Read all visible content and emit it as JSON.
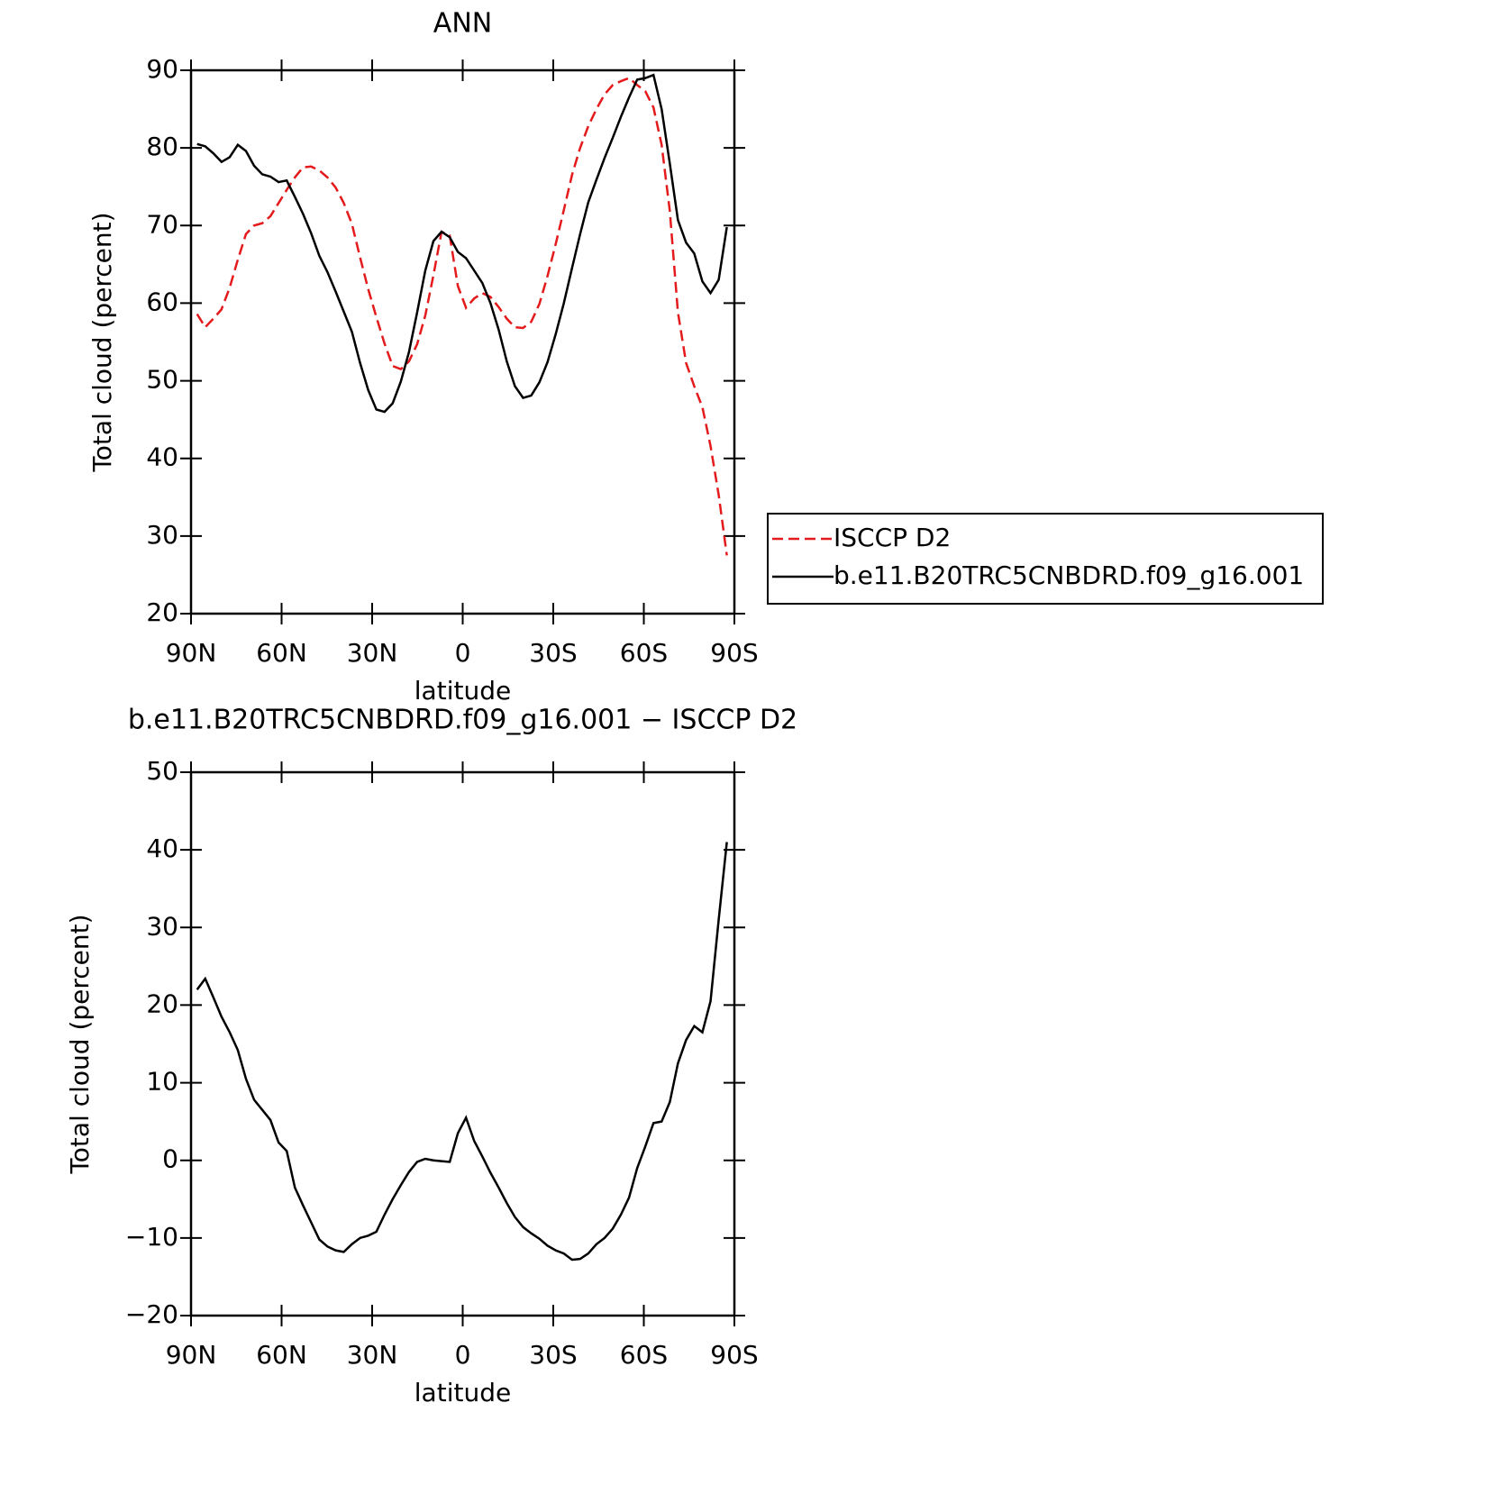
{
  "chart_data": [
    {
      "type": "line",
      "title": "ANN",
      "xlabel": "latitude",
      "ylabel": "Total cloud (percent)",
      "x": [
        88,
        85.3,
        82.6,
        79.9,
        77.2,
        74.5,
        71.8,
        69.1,
        66.4,
        63.7,
        61,
        58.3,
        55.6,
        52.9,
        50.2,
        47.5,
        44.8,
        42.1,
        39.4,
        36.7,
        34,
        31.3,
        28.6,
        25.9,
        23.2,
        20.5,
        17.8,
        15.1,
        12.4,
        9.7,
        7,
        4.3,
        1.6,
        -1.1,
        -3.8,
        -6.5,
        -9.2,
        -11.9,
        -14.6,
        -17.3,
        -20,
        -22.7,
        -25.4,
        -28.1,
        -30.8,
        -33.5,
        -36.2,
        -38.9,
        -41.6,
        -44.3,
        -47,
        -49.7,
        -52.4,
        -55.1,
        -57.8,
        -60.5,
        -63.2,
        -65.9,
        -68.6,
        -71.3,
        -74,
        -76.7,
        -79.4,
        -82.1,
        -84.8,
        -87.5
      ],
      "xlim": [
        90,
        -90
      ],
      "xticks": [
        {
          "value": 90,
          "label": "90N"
        },
        {
          "value": 60,
          "label": "60N"
        },
        {
          "value": 30,
          "label": "30N"
        },
        0,
        {
          "value": -30,
          "label": "30S"
        },
        {
          "value": -60,
          "label": "60S"
        },
        {
          "value": -90,
          "label": "90S"
        }
      ],
      "ylim": [
        20,
        90
      ],
      "yticks": [
        20,
        30,
        40,
        50,
        60,
        70,
        80,
        90
      ],
      "legend": "outside-right",
      "series": [
        {
          "name": "ISCCP D2",
          "color": "#e41a1c",
          "dash": true,
          "values": [
            58.6,
            56.9,
            58,
            59.2,
            62,
            65.6,
            68.9,
            70,
            70.3,
            71.2,
            72.9,
            74.6,
            76.2,
            77.5,
            77.6,
            77.1,
            76.2,
            74.9,
            72.9,
            70.2,
            65.9,
            61.8,
            58.2,
            54.8,
            51.9,
            51.5,
            52.5,
            54.7,
            58.4,
            63.6,
            69.2,
            68.7,
            62.2,
            59.4,
            60.6,
            61.3,
            60.8,
            59.5,
            58,
            56.9,
            56.8,
            57.6,
            59.9,
            63.5,
            67.6,
            72,
            76.5,
            80,
            82.8,
            85,
            86.9,
            88.1,
            88.6,
            89,
            88.1,
            87.3,
            85.2,
            80.4,
            71.9,
            58.8,
            52.3,
            49.3,
            46.6,
            41.6,
            35.3,
            27.5
          ]
        },
        {
          "name": "b.e11.B20TRC5CNBDRD.f09_g16.001",
          "color": "#000000",
          "dash": false,
          "values": [
            80.5,
            80.2,
            79.3,
            78.2,
            78.8,
            80.4,
            79.6,
            77.7,
            76.6,
            76.3,
            75.6,
            75.8,
            73.7,
            71.5,
            69,
            66.1,
            64,
            61.5,
            58.9,
            56.3,
            52.3,
            48.8,
            46.3,
            46,
            47.1,
            49.9,
            53.7,
            58.8,
            64.2,
            68,
            69.2,
            68.5,
            66.6,
            65.8,
            64.2,
            62.6,
            60,
            56.6,
            52.5,
            49.3,
            47.8,
            48.1,
            49.8,
            52.4,
            56,
            60,
            64.5,
            68.9,
            73,
            75.9,
            78.7,
            81.3,
            84,
            86.5,
            88.8,
            89,
            89.4,
            85,
            78,
            70.7,
            67.8,
            66.4,
            62.8,
            61.3,
            63,
            69.8
          ]
        }
      ]
    },
    {
      "type": "line",
      "title": "b.e11.B20TRC5CNBDRD.f09_g16.001 − ISCCP D2",
      "xlabel": "latitude",
      "ylabel": "Total cloud (percent)",
      "x": [
        88,
        85.3,
        82.6,
        79.9,
        77.2,
        74.5,
        71.8,
        69.1,
        66.4,
        63.7,
        61,
        58.3,
        55.6,
        52.9,
        50.2,
        47.5,
        44.8,
        42.1,
        39.4,
        36.7,
        34,
        31.3,
        28.6,
        25.9,
        23.2,
        20.5,
        17.8,
        15.1,
        12.4,
        9.7,
        7,
        4.3,
        1.6,
        -1.1,
        -3.8,
        -6.5,
        -9.2,
        -11.9,
        -14.6,
        -17.3,
        -20,
        -22.7,
        -25.4,
        -28.1,
        -30.8,
        -33.5,
        -36.2,
        -38.9,
        -41.6,
        -44.3,
        -47,
        -49.7,
        -52.4,
        -55.1,
        -57.8,
        -60.5,
        -63.2,
        -65.9,
        -68.6,
        -71.3,
        -74,
        -76.7,
        -79.4,
        -82.1,
        -84.8,
        -87.5
      ],
      "xlim": [
        90,
        -90
      ],
      "xticks": [
        {
          "value": 90,
          "label": "90N"
        },
        {
          "value": 60,
          "label": "60N"
        },
        {
          "value": 30,
          "label": "30N"
        },
        0,
        {
          "value": -30,
          "label": "30S"
        },
        {
          "value": -60,
          "label": "60S"
        },
        {
          "value": -90,
          "label": "90S"
        }
      ],
      "ylim": [
        -20,
        50
      ],
      "yticks": [
        {
          "value": -20,
          "label": "−20"
        },
        {
          "value": -10,
          "label": "−10"
        },
        0,
        10,
        20,
        30,
        40,
        50
      ],
      "series": [
        {
          "color": "#000000",
          "dash": false,
          "values": [
            22,
            23.4,
            21,
            18.5,
            16.5,
            14.2,
            10.5,
            7.8,
            6.5,
            5.2,
            2.3,
            1.2,
            -3.5,
            -5.8,
            -8,
            -10.2,
            -11.1,
            -11.6,
            -11.8,
            -10.8,
            -10,
            -9.7,
            -9.2,
            -7,
            -5,
            -3.2,
            -1.5,
            -0.2,
            0.2,
            0,
            -0.1,
            -0.2,
            3.5,
            5.5,
            2.5,
            0.5,
            -1.6,
            -3.5,
            -5.5,
            -7.3,
            -8.6,
            -9.4,
            -10.1,
            -11,
            -11.6,
            -12,
            -12.8,
            -12.7,
            -12,
            -10.8,
            -10,
            -8.8,
            -7,
            -4.8,
            -1,
            1.8,
            4.8,
            5,
            7.5,
            12.5,
            15.5,
            17.3,
            16.5,
            20.5,
            31,
            41
          ]
        }
      ]
    }
  ]
}
